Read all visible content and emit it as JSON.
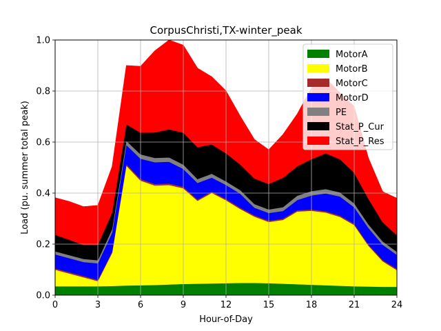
{
  "chart_data": {
    "type": "area",
    "stacked": true,
    "title": "CorpusChristi,TX-winter_peak",
    "xlabel": "Hour-of-Day",
    "ylabel": "Load (pu. summer total peak)",
    "xlim": [
      0,
      24
    ],
    "ylim": [
      0,
      1.0
    ],
    "xticks": [
      0,
      3,
      6,
      9,
      12,
      15,
      18,
      21,
      24
    ],
    "yticks": [
      0.0,
      0.2,
      0.4,
      0.6,
      0.8,
      1.0
    ],
    "xtick_labels": [
      "0",
      "3",
      "6",
      "9",
      "12",
      "15",
      "18",
      "21",
      "24"
    ],
    "ytick_labels": [
      "0.0",
      "0.2",
      "0.4",
      "0.6",
      "0.8",
      "1.0"
    ],
    "grid": true,
    "legend_position": "upper-right",
    "x": [
      0,
      1,
      2,
      3,
      4,
      5,
      6,
      7,
      8,
      9,
      10,
      11,
      12,
      13,
      14,
      15,
      16,
      17,
      18,
      19,
      20,
      21,
      22,
      23,
      24
    ],
    "series": [
      {
        "name": "MotorA",
        "color": "#008000",
        "values": [
          0.035,
          0.035,
          0.035,
          0.035,
          0.036,
          0.038,
          0.039,
          0.04,
          0.042,
          0.044,
          0.045,
          0.046,
          0.047,
          0.048,
          0.048,
          0.047,
          0.045,
          0.043,
          0.041,
          0.039,
          0.037,
          0.035,
          0.034,
          0.033,
          0.033
        ]
      },
      {
        "name": "MotorB",
        "color": "#ffff00",
        "values": [
          0.065,
          0.05,
          0.035,
          0.02,
          0.13,
          0.47,
          0.41,
          0.39,
          0.39,
          0.375,
          0.325,
          0.355,
          0.325,
          0.29,
          0.26,
          0.24,
          0.25,
          0.285,
          0.29,
          0.285,
          0.27,
          0.24,
          0.16,
          0.1,
          0.065
        ]
      },
      {
        "name": "MotorC",
        "color": "#a52a2a",
        "values": [
          0.005,
          0.005,
          0.005,
          0.005,
          0.005,
          0.006,
          0.006,
          0.006,
          0.006,
          0.006,
          0.005,
          0.005,
          0.005,
          0.005,
          0.005,
          0.005,
          0.005,
          0.005,
          0.005,
          0.005,
          0.005,
          0.005,
          0.005,
          0.005,
          0.005
        ]
      },
      {
        "name": "MotorD",
        "color": "#0000ff",
        "values": [
          0.055,
          0.055,
          0.055,
          0.065,
          0.075,
          0.075,
          0.08,
          0.085,
          0.085,
          0.07,
          0.065,
          0.055,
          0.055,
          0.055,
          0.03,
          0.03,
          0.03,
          0.04,
          0.055,
          0.07,
          0.075,
          0.065,
          0.065,
          0.06,
          0.055
        ]
      },
      {
        "name": "PE",
        "color": "#808080",
        "values": [
          0.012,
          0.012,
          0.012,
          0.012,
          0.013,
          0.016,
          0.017,
          0.017,
          0.017,
          0.017,
          0.015,
          0.015,
          0.014,
          0.014,
          0.014,
          0.014,
          0.015,
          0.017,
          0.017,
          0.017,
          0.016,
          0.015,
          0.014,
          0.013,
          0.012
        ]
      },
      {
        "name": "Stat_P_Cur",
        "color": "#000000",
        "values": [
          0.065,
          0.06,
          0.055,
          0.06,
          0.065,
          0.065,
          0.085,
          0.1,
          0.11,
          0.125,
          0.125,
          0.115,
          0.11,
          0.1,
          0.1,
          0.1,
          0.115,
          0.115,
          0.125,
          0.14,
          0.13,
          0.12,
          0.1,
          0.075,
          0.065
        ]
      },
      {
        "name": "Stat_P_Res",
        "color": "#ff0000",
        "values": [
          0.145,
          0.15,
          0.15,
          0.155,
          0.18,
          0.23,
          0.26,
          0.32,
          0.35,
          0.343,
          0.31,
          0.265,
          0.245,
          0.19,
          0.153,
          0.134,
          0.17,
          0.205,
          0.28,
          0.295,
          0.26,
          0.26,
          0.16,
          0.12,
          0.145
        ]
      }
    ]
  }
}
